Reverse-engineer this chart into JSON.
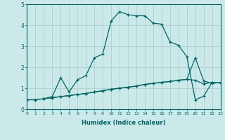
{
  "xlabel": "Humidex (Indice chaleur)",
  "background_color": "#cce9e9",
  "grid_color": "#aacccc",
  "line_color": "#006666",
  "xlim": [
    0,
    23
  ],
  "ylim": [
    0,
    5
  ],
  "xticks": [
    0,
    1,
    2,
    3,
    4,
    5,
    6,
    7,
    8,
    9,
    10,
    11,
    12,
    13,
    14,
    15,
    16,
    17,
    18,
    19,
    20,
    21,
    22,
    23
  ],
  "yticks": [
    0,
    1,
    2,
    3,
    4,
    5
  ],
  "series": [
    {
      "x": [
        0,
        1,
        2,
        3,
        4,
        5,
        6,
        7,
        8,
        9,
        10,
        11,
        12,
        13,
        14,
        15,
        16,
        17,
        18,
        19,
        20,
        21,
        22,
        23
      ],
      "y": [
        0.45,
        0.45,
        0.5,
        0.55,
        0.6,
        0.65,
        0.7,
        0.75,
        0.82,
        0.88,
        0.95,
        1.0,
        1.05,
        1.1,
        1.18,
        1.23,
        1.28,
        1.32,
        1.38,
        1.42,
        1.38,
        1.2,
        1.28,
        1.25
      ]
    },
    {
      "x": [
        0,
        1,
        2,
        3,
        4,
        5,
        6,
        7,
        8,
        9,
        10,
        11,
        12,
        13,
        14,
        15,
        16,
        17,
        18,
        19,
        20,
        21,
        22,
        23
      ],
      "y": [
        0.45,
        0.45,
        0.5,
        0.55,
        0.6,
        0.65,
        0.7,
        0.75,
        0.82,
        0.88,
        0.95,
        1.0,
        1.05,
        1.1,
        1.18,
        1.23,
        1.28,
        1.32,
        1.38,
        1.42,
        2.45,
        1.35,
        1.22,
        1.28
      ]
    },
    {
      "x": [
        2,
        3,
        4,
        5,
        6,
        7,
        8,
        9,
        10,
        11,
        12,
        13,
        14,
        15,
        16,
        17,
        18,
        19,
        20,
        21,
        22
      ],
      "y": [
        0.5,
        0.6,
        1.5,
        0.82,
        1.4,
        1.6,
        2.45,
        2.62,
        4.2,
        4.65,
        4.5,
        4.45,
        4.45,
        4.1,
        4.05,
        3.2,
        3.05,
        2.5,
        0.45,
        0.62,
        1.28
      ]
    }
  ]
}
